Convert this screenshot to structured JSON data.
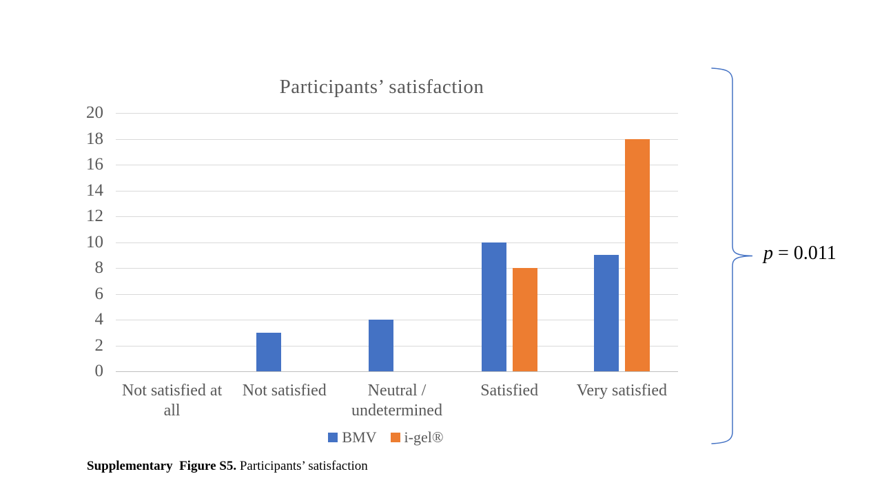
{
  "page": {
    "background": "#ffffff"
  },
  "chart_data": {
    "type": "bar",
    "title": "Participants’ satisfaction",
    "categories": [
      "Not satisfied at all",
      "Not satisfied",
      "Neutral / undetermined",
      "Satisfied",
      "Very satisfied"
    ],
    "series": [
      {
        "name": "BMV",
        "color": "#4472C4",
        "values": [
          0,
          3,
          4,
          10,
          9
        ]
      },
      {
        "name": "i-gel®",
        "color": "#ED7D31",
        "values": [
          0,
          0,
          0,
          8,
          18
        ]
      }
    ],
    "xlabel": "",
    "ylabel": "",
    "ylim": [
      0,
      20
    ],
    "ytick_step": 2,
    "grid": true,
    "grid_color": "#D9D9D9",
    "axis_color": "#BFBFBF",
    "text_color": "#595959",
    "legend_position": "bottom"
  },
  "annotation": {
    "text": "p = 0.011",
    "italic_part": "p",
    "rest_part": " = 0.011",
    "brace_color": "#4472C4"
  },
  "caption": {
    "bold": "Supplementary  Figure S5.",
    "regular": " Participants’ satisfaction"
  }
}
